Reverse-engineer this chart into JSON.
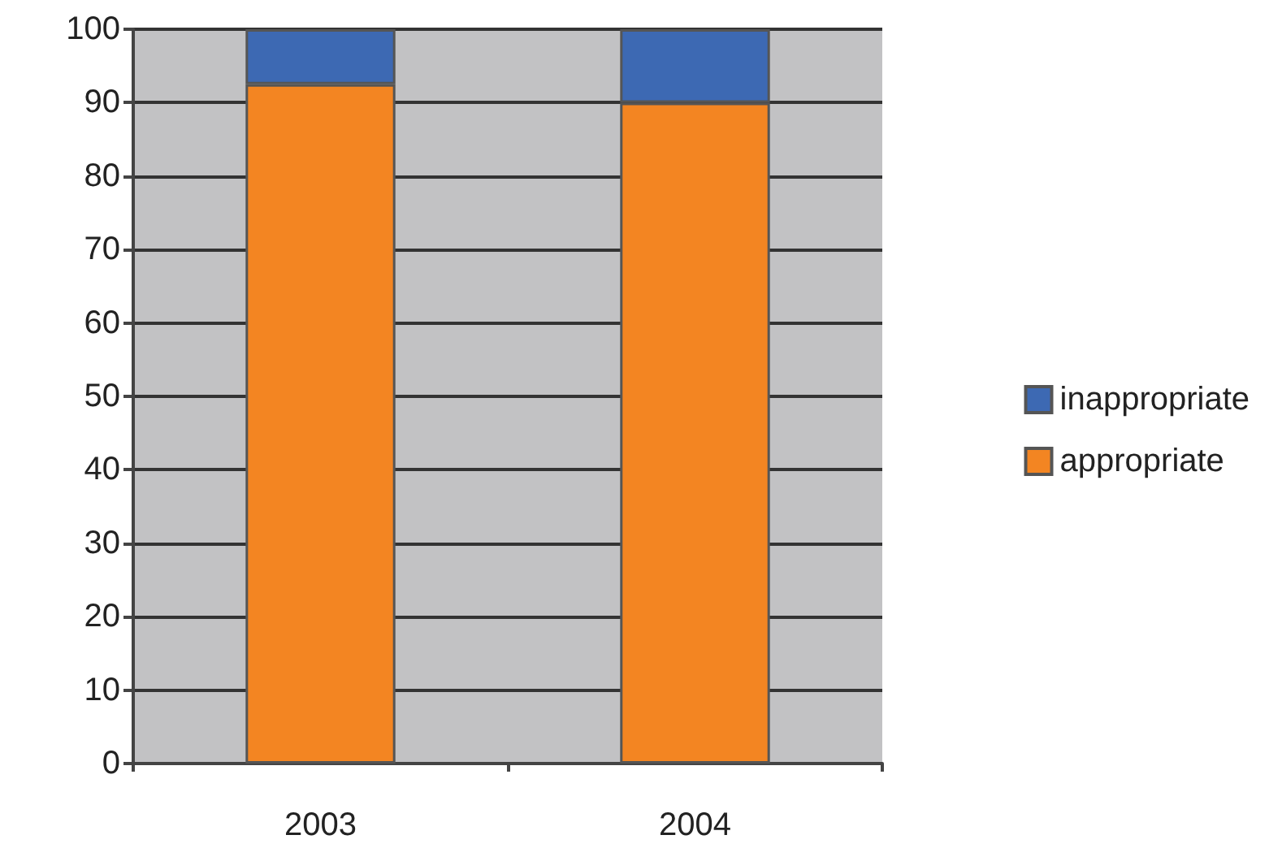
{
  "chart_data": {
    "type": "bar",
    "stacked": true,
    "categories": [
      "2003",
      "2004"
    ],
    "series": [
      {
        "name": "appropriate",
        "color": "#f38522",
        "values": [
          92.5,
          90
        ]
      },
      {
        "name": "inappropriate",
        "color": "#3d69b3",
        "values": [
          7.5,
          10
        ]
      }
    ],
    "ylim": [
      0,
      100
    ],
    "yticks": [
      0,
      10,
      20,
      30,
      40,
      50,
      60,
      70,
      80,
      90,
      100
    ],
    "grid": "y",
    "legend": "right"
  }
}
